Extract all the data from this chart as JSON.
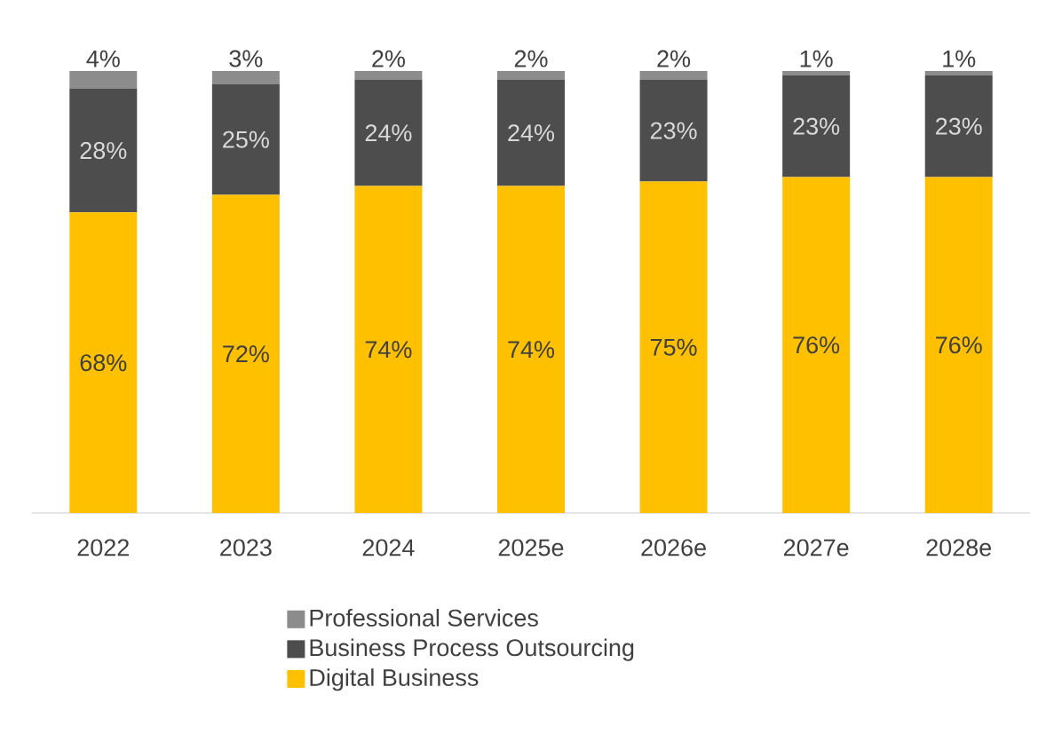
{
  "chart_data": {
    "type": "bar",
    "stacked": true,
    "legend": "bottom",
    "categories": [
      "2022",
      "2023",
      "2024",
      "2025e",
      "2026e",
      "2027e",
      "2028e"
    ],
    "series": [
      {
        "name": "Digital Business",
        "color": "#ffc000",
        "values": [
          68,
          72,
          74,
          74,
          75,
          76,
          76
        ],
        "value_labels": [
          "68%",
          "72%",
          "74%",
          "74%",
          "75%",
          "76%",
          "76%"
        ]
      },
      {
        "name": "Business Process Outsourcing",
        "color": "#4d4d4d",
        "values": [
          28,
          25,
          24,
          24,
          23,
          23,
          23
        ],
        "value_labels": [
          "28%",
          "25%",
          "24%",
          "24%",
          "23%",
          "23%",
          "23%"
        ]
      },
      {
        "name": "Professional Services",
        "color": "#8c8c8c",
        "values": [
          4,
          3,
          2,
          2,
          2,
          1,
          1
        ],
        "value_labels": [
          "4%",
          "3%",
          "2%",
          "2%",
          "2%",
          "1%",
          "1%"
        ]
      }
    ]
  }
}
